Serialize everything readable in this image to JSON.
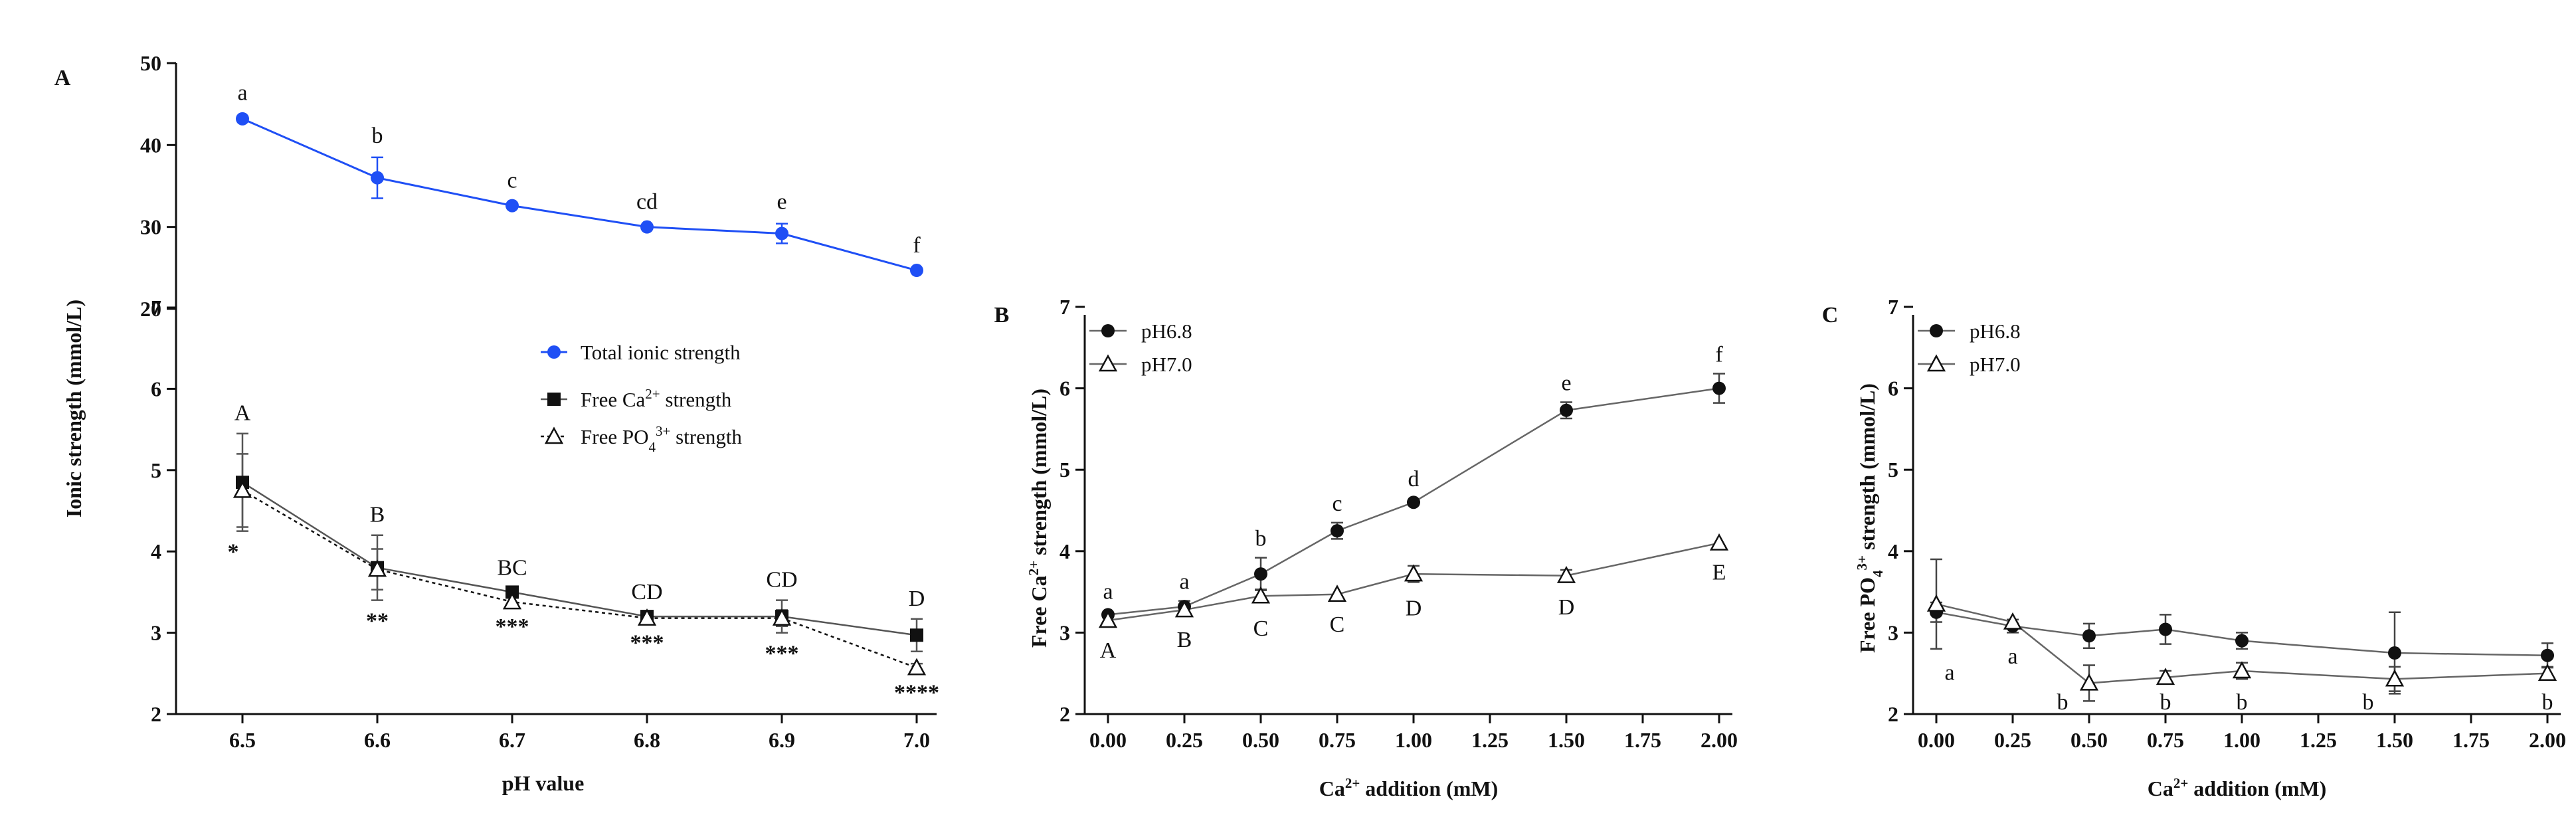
{
  "colors": {
    "total": "#1f4ff5",
    "black": "#111111",
    "gray": "#555555"
  },
  "chart_data": [
    {
      "panel": "A",
      "type": "line",
      "xlabel": "pH value",
      "ylabel": "Ionic strength (mmol/L)",
      "x": [
        6.5,
        6.6,
        6.7,
        6.8,
        6.9,
        7.0
      ],
      "xticks": [
        "6.5",
        "6.6",
        "6.7",
        "6.8",
        "6.9",
        "7.0"
      ],
      "yaxis_top": {
        "ylim": [
          20,
          50
        ],
        "ticks": [
          "20",
          "30",
          "40",
          "50"
        ]
      },
      "yaxis_bottom": {
        "ylim": [
          2,
          7
        ],
        "ticks": [
          "2",
          "3",
          "4",
          "5",
          "6",
          "7"
        ]
      },
      "legend": [
        "Total ionic strength",
        "Free Ca",
        "2+",
        " strength",
        "Free PO",
        "4",
        "3+",
        " strength"
      ],
      "series": [
        {
          "name": "Total ionic strength",
          "values": [
            43.2,
            36.0,
            32.6,
            30.0,
            29.2,
            24.7
          ],
          "errors": [
            0.5,
            2.5,
            0.4,
            0.4,
            1.2,
            0.4
          ],
          "letters": [
            "a",
            "b",
            "c",
            "cd",
            "e",
            "f"
          ]
        },
        {
          "name": "Free Ca2+ strength",
          "values": [
            4.85,
            3.8,
            3.5,
            3.2,
            3.2,
            2.97
          ],
          "errors": [
            0.6,
            0.4,
            0.05,
            0.05,
            0.2,
            0.2
          ],
          "letters": [
            "A",
            "B",
            "BC",
            "CD",
            "CD",
            "D"
          ]
        },
        {
          "name": "Free PO43+ strength",
          "values": [
            4.75,
            3.78,
            3.38,
            3.18,
            3.18,
            2.57
          ],
          "errors": [
            0.45,
            0.25,
            0.05,
            0.05,
            0.1,
            0.05
          ],
          "stars": [
            "*",
            "**",
            "***",
            "***",
            "***",
            "****"
          ]
        }
      ]
    },
    {
      "panel": "B",
      "type": "line",
      "xlabel": [
        "Ca",
        "2+",
        " addition (mM)"
      ],
      "ylabel": [
        "Free Ca",
        "2+",
        " strength (mmol/L)"
      ],
      "x": [
        0,
        0.25,
        0.5,
        0.75,
        1.0,
        1.5,
        2.0
      ],
      "xticks": [
        "0.00",
        "0.25",
        "0.50",
        "0.75",
        "1.00",
        "1.25",
        "1.50",
        "1.75",
        "2.00"
      ],
      "ylim": [
        2,
        7
      ],
      "yticks": [
        "2",
        "3",
        "4",
        "5",
        "6",
        "7"
      ],
      "legend": [
        "pH6.8",
        "pH7.0"
      ],
      "series": [
        {
          "name": "pH6.8",
          "values": [
            3.22,
            3.32,
            3.72,
            4.25,
            4.6,
            5.73,
            6.0
          ],
          "errors": [
            0.05,
            0.07,
            0.2,
            0.1,
            0.05,
            0.1,
            0.18
          ],
          "letters": [
            "a",
            "a",
            "b",
            "c",
            "d",
            "e",
            "f"
          ]
        },
        {
          "name": "pH7.0",
          "values": [
            3.15,
            3.28,
            3.45,
            3.47,
            3.72,
            3.7,
            4.1
          ],
          "errors": [
            0.05,
            0.05,
            0.08,
            0.05,
            0.1,
            0.07,
            0.05
          ],
          "letters": [
            "A",
            "B",
            "C",
            "C",
            "D",
            "D",
            "E"
          ]
        }
      ]
    },
    {
      "panel": "C",
      "type": "line",
      "xlabel": [
        "Ca",
        "2+",
        " addition (mM)"
      ],
      "ylabel": [
        "Free PO",
        "4",
        "3+",
        " strength (mmol/L)"
      ],
      "x": [
        0,
        0.25,
        0.5,
        0.75,
        1.0,
        1.5,
        2.0
      ],
      "xticks": [
        "0.00",
        "0.25",
        "0.50",
        "0.75",
        "1.00",
        "1.25",
        "1.50",
        "1.75",
        "2.00"
      ],
      "ylim": [
        2,
        7
      ],
      "yticks": [
        "2",
        "3",
        "4",
        "5",
        "6",
        "7"
      ],
      "legend": [
        "pH6.8",
        "pH7.0"
      ],
      "series": [
        {
          "name": "pH6.8",
          "values": [
            3.25,
            3.08,
            2.96,
            3.04,
            2.9,
            2.75,
            2.72
          ],
          "errors": [
            0.12,
            0.08,
            0.15,
            0.18,
            0.1,
            0.5,
            0.15
          ]
        },
        {
          "name": "pH7.0",
          "values": [
            3.35,
            3.13,
            2.38,
            2.45,
            2.53,
            2.43,
            2.5
          ],
          "errors": [
            0.55,
            0.05,
            0.22,
            0.08,
            0.1,
            0.15,
            0.08
          ]
        }
      ],
      "letters": [
        "a",
        "a",
        "b",
        "b",
        "b",
        "b",
        "b"
      ]
    }
  ]
}
